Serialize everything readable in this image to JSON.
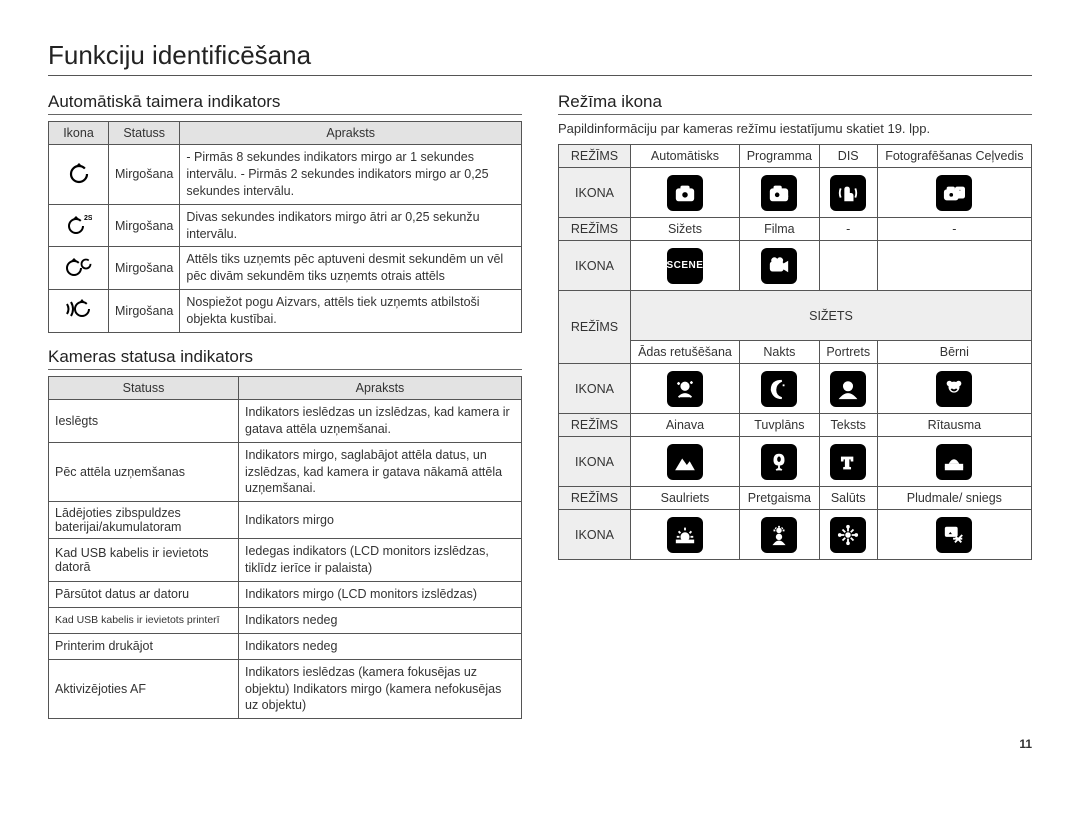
{
  "page_title": "Funkciju identificēšana",
  "page_number": "11",
  "section_timer": {
    "heading": "Automātiskā taimera indikators",
    "columns": [
      "Ikona",
      "Statuss",
      "Apraksts"
    ],
    "rows": [
      {
        "icon_name": "timer-10-icon",
        "status": "Mirgošana",
        "desc": "- Pirmās 8 sekundes indikators mirgo ar 1 sekundes intervālu.\n- Pirmās 2 sekundes indikators mirgo ar 0,25 sekundes intervālu."
      },
      {
        "icon_name": "timer-2s-icon",
        "status": "Mirgošana",
        "desc": "Divas sekundes indikators mirgo ātri ar 0,25 sekunžu intervālu."
      },
      {
        "icon_name": "timer-double-icon",
        "status": "Mirgošana",
        "desc": "Attēls tiks uzņemts pēc aptuveni desmit sekundēm un vēl pēc divām sekundēm tiks uzņemts otrais attēls"
      },
      {
        "icon_name": "motion-timer-icon",
        "status": "Mirgošana",
        "desc": "Nospiežot pogu Aizvars, attēls tiek uzņemts atbilstoši objekta kustībai."
      }
    ]
  },
  "section_status": {
    "heading": "Kameras statusa indikators",
    "columns": [
      "Statuss",
      "Apraksts"
    ],
    "rows": [
      [
        "Ieslēgts",
        "Indikators ieslēdzas un izslēdzas, kad kamera ir gatava attēla uzņemšanai."
      ],
      [
        "Pēc attēla uzņemšanas",
        "Indikators mirgo, saglabājot attēla datus, un izslēdzas, kad kamera ir gatava nākamā attēla uzņemšanai."
      ],
      [
        "Lādējoties zibspuldzes baterijai/akumulatoram",
        "Indikators mirgo"
      ],
      [
        "Kad USB kabelis ir ievietots datorā",
        "Iedegas indikators (LCD monitors izslēdzas, tiklīdz ierīce ir palaista)"
      ],
      [
        "Pārsūtot datus ar datoru",
        "Indikators mirgo (LCD monitors izslēdzas)"
      ],
      [
        "Kad USB kabelis ir ievietots printerī",
        "Indikators nedeg"
      ],
      [
        "Printerim drukājot",
        "Indikators nedeg"
      ],
      [
        "Aktivizējoties AF",
        "Indikators ieslēdzas\n(kamera fokusējas uz objektu)\nIndikators mirgo (kamera nefokusējas uz objektu)"
      ]
    ]
  },
  "section_mode": {
    "heading": "Režīma ikona",
    "note": "Papildinformāciju par kameras režīmu iestatījumu skatiet 19. lpp.",
    "label_mode": "REŽĪMS",
    "label_icon": "IKONA",
    "label_scene": "SIŽETS",
    "rows_top": [
      {
        "modes": [
          "Automātisks",
          "Programma",
          "DIS",
          "Fotografēšanas Ceļvedis"
        ],
        "icons": [
          "camera-auto-icon",
          "camera-p-icon",
          "dis-hand-icon",
          "camera-guide-icon"
        ]
      },
      {
        "modes": [
          "Sižets",
          "Filma",
          "-",
          "-"
        ],
        "icons": [
          "scene-label-icon",
          "movie-icon",
          null,
          null
        ]
      }
    ],
    "rows_scene": [
      {
        "modes": [
          "Ādas retušēšana",
          "Nakts",
          "Portrets",
          "Bērni"
        ],
        "icons": [
          "beauty-icon",
          "night-icon",
          "portrait-icon",
          "children-icon"
        ]
      },
      {
        "modes": [
          "Ainava",
          "Tuvplāns",
          "Teksts",
          "Rītausma"
        ],
        "icons": [
          "landscape-icon",
          "closeup-icon",
          "text-icon",
          "dawn-icon"
        ]
      },
      {
        "modes": [
          "Saulriets",
          "Pretgaisma",
          "Salūts",
          "Pludmale/ sniegs"
        ],
        "icons": [
          "sunset-icon",
          "backlight-icon",
          "fireworks-icon",
          "beach-snow-icon"
        ]
      }
    ]
  },
  "style": {
    "tile_bg": "#000000",
    "tile_fg": "#ffffff",
    "header_bg": "#e3e3e3",
    "border_color": "#555555"
  }
}
